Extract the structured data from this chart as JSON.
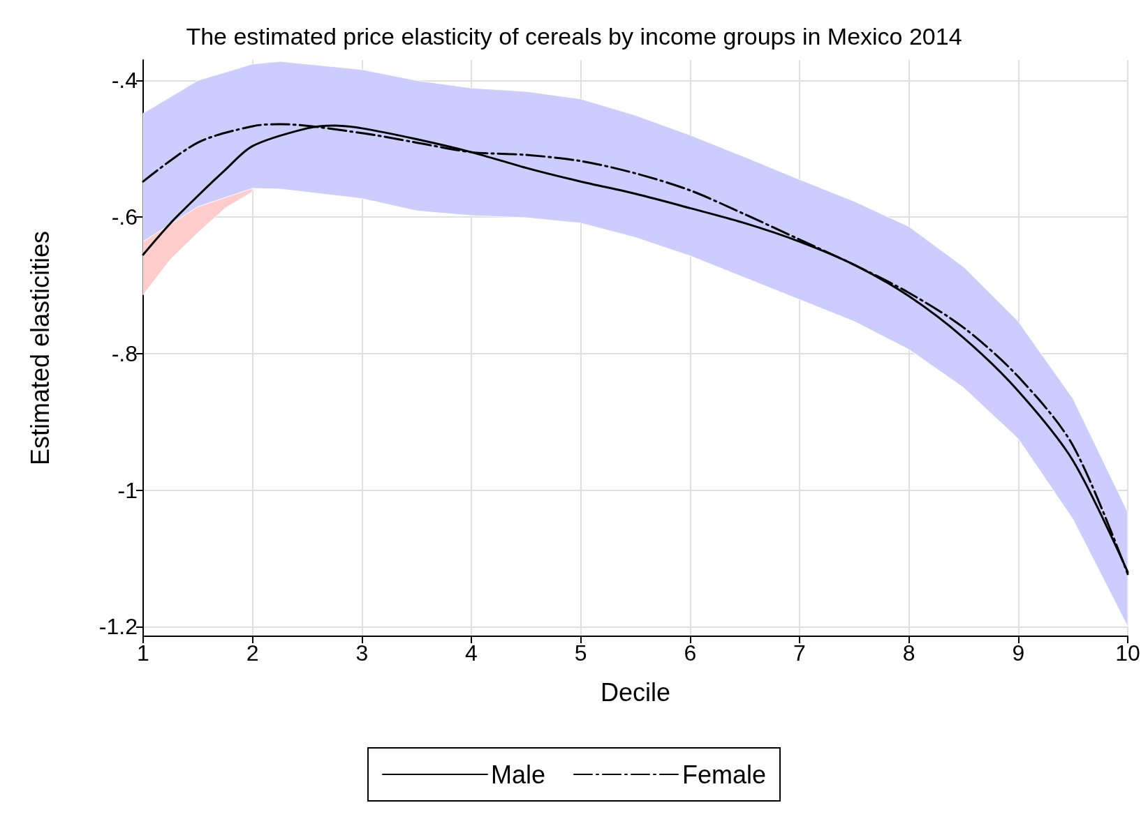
{
  "chart_data": {
    "type": "line",
    "title": "The estimated price elasticity of cereals by income groups in Mexico 2014",
    "xlabel": "Decile",
    "ylabel": "Estimated elasticities",
    "xlim": [
      1,
      10
    ],
    "xticks": [
      1,
      2,
      3,
      4,
      5,
      6,
      7,
      8,
      9,
      10
    ],
    "ylim": [
      -1.214,
      -0.37
    ],
    "yticks": [
      {
        "value": -1.2,
        "label": "-1.2"
      },
      {
        "value": -1,
        "label": "-1"
      },
      {
        "value": -0.8,
        "label": "-.8"
      },
      {
        "value": -0.6,
        "label": "-.6"
      },
      {
        "value": -0.4,
        "label": "-.4"
      }
    ],
    "grid": true,
    "legend": "bottom",
    "marker": "none",
    "series": [
      {
        "name": "Male",
        "color": "#000000",
        "line_style": "solid",
        "x": [
          1,
          1.25,
          1.5,
          1.75,
          2,
          2.5,
          2.75,
          3,
          3.5,
          4,
          4.5,
          5,
          5.5,
          6,
          6.5,
          7,
          7.5,
          8,
          8.5,
          9,
          9.5,
          10
        ],
        "values": [
          -0.655,
          -0.609,
          -0.569,
          -0.531,
          -0.496,
          -0.47,
          -0.466,
          -0.47,
          -0.486,
          -0.505,
          -0.528,
          -0.548,
          -0.566,
          -0.587,
          -0.609,
          -0.636,
          -0.67,
          -0.716,
          -0.777,
          -0.855,
          -0.957,
          -1.12
        ],
        "lower": [
          -0.714,
          -0.662,
          -0.623,
          -0.587,
          -0.563,
          null,
          null,
          null,
          null,
          null,
          null,
          null,
          null,
          null,
          null,
          null,
          null,
          null,
          null,
          null,
          null,
          null
        ],
        "upper": [
          -0.636,
          -0.609,
          -0.585,
          -0.568,
          -0.558,
          null,
          null,
          null,
          null,
          null,
          null,
          null,
          null,
          null,
          null,
          null,
          null,
          null,
          null,
          null,
          null,
          null
        ]
      },
      {
        "name": "Female",
        "color": "#000000",
        "line_style": "dashdot",
        "x": [
          1,
          1.5,
          2,
          2.25,
          3,
          3.5,
          4,
          4.5,
          5,
          5.5,
          6,
          6.5,
          7,
          7.5,
          8,
          8.5,
          9,
          9.5,
          10
        ],
        "values": [
          -0.548,
          -0.491,
          -0.467,
          -0.464,
          -0.477,
          -0.491,
          -0.505,
          -0.509,
          -0.518,
          -0.536,
          -0.561,
          -0.596,
          -0.633,
          -0.67,
          -0.711,
          -0.762,
          -0.834,
          -0.935,
          -1.123
        ],
        "lower": [
          -0.636,
          -0.585,
          -0.558,
          -0.559,
          -0.573,
          -0.591,
          -0.598,
          -0.601,
          -0.609,
          -0.63,
          -0.657,
          -0.689,
          -0.721,
          -0.753,
          -0.794,
          -0.85,
          -0.925,
          -1.043,
          -1.2
        ],
        "upper": [
          -0.448,
          -0.4,
          -0.376,
          -0.372,
          -0.384,
          -0.4,
          -0.411,
          -0.416,
          -0.427,
          -0.451,
          -0.48,
          -0.512,
          -0.545,
          -0.577,
          -0.614,
          -0.673,
          -0.753,
          -0.866,
          -1.032
        ]
      }
    ]
  }
}
